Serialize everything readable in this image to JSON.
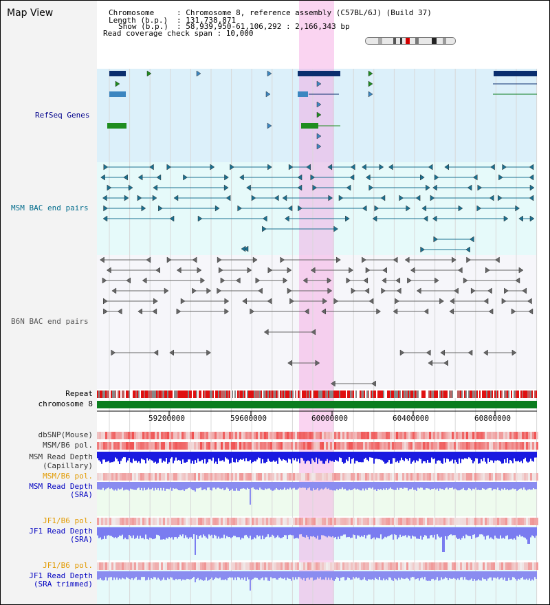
{
  "title": "Map View",
  "info": {
    "chromosome_key": "Chromosome",
    "chromosome_val": ": Chromosome 8, reference assembly (C57BL/6J) (Build 37)",
    "length_key": "Length (b.p.)",
    "length_val": ": 131,738,871",
    "show_key": "Show (b.p.)",
    "show_val": ": 58,939,950-61,106,292 : 2,166,343 bp",
    "coverage": "Read coverage check span : 10,000"
  },
  "tracks": {
    "refseq": "RefSeq Genes",
    "msm_bac": "MSM BAC end pairs",
    "b6n_bac": "B6N BAC end pairs",
    "repeat": "Repeat",
    "chromosome": "chromosome 8",
    "dbsnp": "dbSNP(Mouse)",
    "msm_b6_pol": "MSM/B6 pol.",
    "msm_depth_cap_1": "MSM Read Depth",
    "msm_depth_cap_2": "(Capillary)",
    "msm_b6_pol2": "MSM/B6 pol.",
    "msm_depth_sra_1": "MSM Read Depth",
    "msm_depth_sra_2": "(SRA)",
    "jf1_b6_pol": "JF1/B6 pol.",
    "jf1_depth_sra_1": "JF1 Read Depth",
    "jf1_depth_sra_2": "(SRA)",
    "jf1_b6_pol2": "JF1/B6 pol.",
    "jf1_depth_trim_1": "JF1 Read Depth",
    "jf1_depth_trim_2": "(SRA trimmed)"
  },
  "axis": {
    "ticks": [
      "59200000",
      "59600000",
      "60000000",
      "60400000",
      "60800000"
    ]
  },
  "colors": {
    "refseq_bg": "#dcf0fa",
    "msm_bg": "#e6fafa",
    "b6n_bg": "#f5f5fa",
    "highlight": "#f7c8ec",
    "chromosome": "#0a7d1e",
    "refseq_label": "#00008b",
    "msm_label": "#006b8b",
    "b6n_label": "#555555",
    "orange_label": "#e29a00",
    "blue_label": "#0000c0",
    "depth_dark": "#1a1ae0",
    "depth_light": "#8a8cf0"
  }
}
